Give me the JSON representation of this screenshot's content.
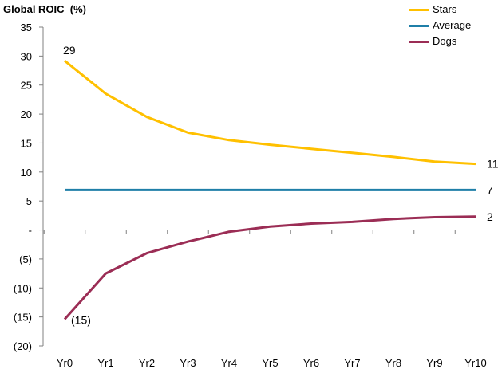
{
  "chart_data": {
    "type": "line",
    "title": "",
    "ylabel": "Global ROIC  (%)",
    "xlabel": "",
    "categories": [
      "Yr0",
      "Yr1",
      "Yr2",
      "Yr3",
      "Yr4",
      "Yr5",
      "Yr6",
      "Yr7",
      "Yr8",
      "Yr9",
      "Yr10"
    ],
    "ylim": [
      -20,
      35
    ],
    "yticks": [
      35,
      30,
      25,
      20,
      15,
      10,
      5,
      0,
      -5,
      -10,
      -15,
      -20
    ],
    "ytick_labels": [
      "35",
      "30",
      "25",
      "20",
      "15",
      "10",
      "5",
      "-",
      "(5)",
      "(10)",
      "(15)",
      "(20)"
    ],
    "grid": false,
    "legend_position": "top-right",
    "series": [
      {
        "name": "Stars",
        "color": "#FFC000",
        "values": [
          29.2,
          23.5,
          19.5,
          16.8,
          15.5,
          14.7,
          14.0,
          13.3,
          12.6,
          11.8,
          11.4
        ]
      },
      {
        "name": "Average",
        "color": "#1F7FA8",
        "values": [
          6.9,
          6.9,
          6.9,
          6.9,
          6.9,
          6.9,
          6.9,
          6.9,
          6.9,
          6.9,
          6.9
        ]
      },
      {
        "name": "Dogs",
        "color": "#9B2D55",
        "values": [
          -15.4,
          -7.5,
          -4.0,
          -2.0,
          -0.3,
          0.6,
          1.1,
          1.4,
          1.9,
          2.2,
          2.3
        ]
      }
    ],
    "annotations": [
      {
        "text": "29",
        "series": "Stars",
        "index": 0,
        "placement": "above"
      },
      {
        "text": "11",
        "series": "Stars",
        "index": 10,
        "placement": "right"
      },
      {
        "text": "7",
        "series": "Average",
        "index": 10,
        "placement": "right"
      },
      {
        "text": "2",
        "series": "Dogs",
        "index": 10,
        "placement": "right"
      },
      {
        "text": "(15)",
        "series": "Dogs",
        "index": 0,
        "placement": "right"
      }
    ]
  }
}
